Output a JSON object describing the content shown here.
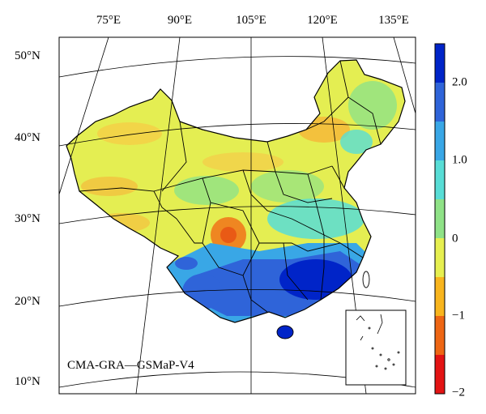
{
  "map": {
    "caption": "CMA-GRA—GSMaP-V4",
    "longitude_labels": [
      "75°E",
      "90°E",
      "105°E",
      "120°E",
      "135°E"
    ],
    "latitude_labels": [
      "50°N",
      "40°N",
      "30°N",
      "20°N",
      "10°N"
    ]
  },
  "colorbar": {
    "labels": [
      "2.0",
      "1.0",
      "0",
      "−1",
      "−2"
    ],
    "colors": [
      "#0024c8",
      "#2f64d9",
      "#39a7e6",
      "#58ddd6",
      "#8fe287",
      "#e6ef50",
      "#f8b51e",
      "#ee6614",
      "#e31414"
    ]
  }
}
